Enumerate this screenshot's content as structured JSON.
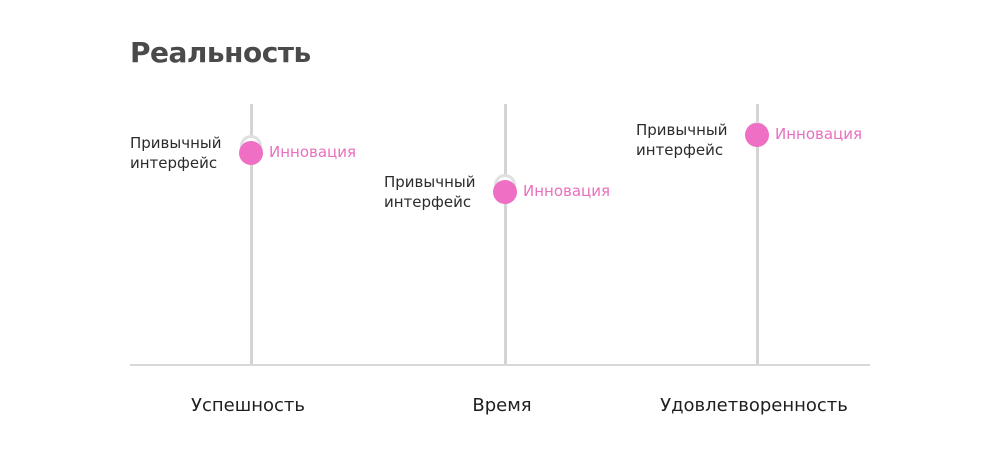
{
  "title": "Реальность",
  "colors": {
    "innovation": "#ee6fc4",
    "axis": "#d4d4d4",
    "text": "#1e1e1e"
  },
  "legend": {
    "habitual_line1": "Привычный",
    "habitual_line2": "интерфейс",
    "innovation": "Инновация"
  },
  "chart_data": {
    "type": "scatter",
    "categories": [
      "Успешность",
      "Время",
      "Удовлетворенность"
    ],
    "series": [
      {
        "name": "Привычный интерфейс",
        "values": [
          0.84,
          0.69,
          0.89
        ]
      },
      {
        "name": "Инновация",
        "values": [
          0.81,
          0.66,
          0.88
        ]
      }
    ],
    "ylim": [
      0,
      1
    ]
  }
}
